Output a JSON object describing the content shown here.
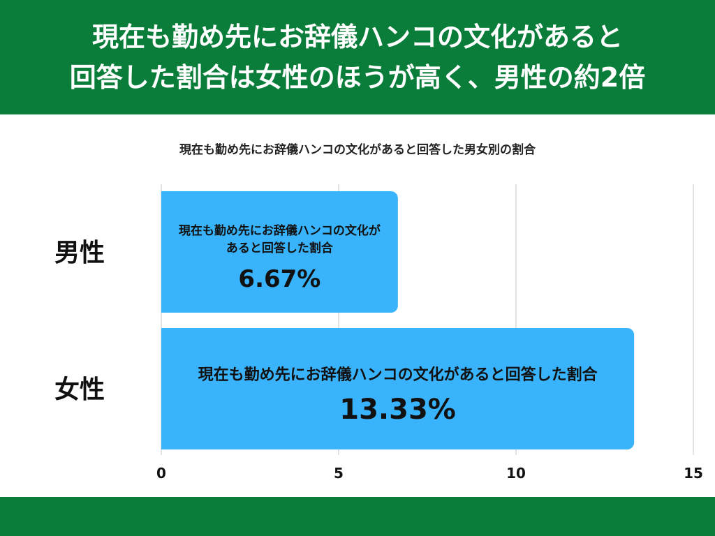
{
  "header": {
    "title_line1": "現在も勤め先にお辞儀ハンコの文化があると",
    "title_line2": "回答した割合は女性のほうが高く、男性の約2倍"
  },
  "colors": {
    "header_bg": "#0b7d3a",
    "bar": "#39b3fb",
    "grid": "#d9d9d9"
  },
  "chart_data": {
    "type": "bar",
    "orientation": "horizontal",
    "title": "現在も勤め先にお辞儀ハンコの文化があると回答した男女別の割合",
    "categories": [
      "男性",
      "女性"
    ],
    "values": [
      6.67,
      13.33
    ],
    "value_labels": [
      "6.67%",
      "13.33%"
    ],
    "bar_captions": [
      [
        "現在も勤め先にお辞儀ハンコの文化が",
        "あると回答した割合"
      ],
      [
        "現在も勤め先にお辞儀ハンコの文化があると回答した割合"
      ]
    ],
    "xlim": [
      0,
      15
    ],
    "xticks": [
      0,
      5,
      10,
      15
    ],
    "grid": true,
    "legend": "none"
  }
}
